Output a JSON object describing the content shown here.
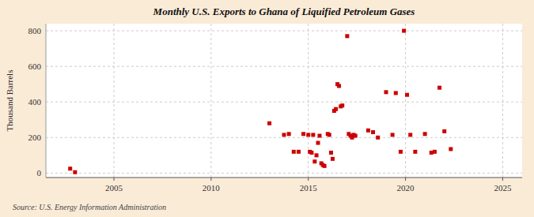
{
  "chart_data": {
    "type": "scatter",
    "title": "Monthly U.S. Exports to Ghana of Liquified Petroleum Gases",
    "ylabel": "Thousand Barrels",
    "annotations": [
      "Source: U.S. Energy Information Administration"
    ],
    "color": "#cc0000",
    "marker": "square",
    "grid": true,
    "xlim": [
      2001.5,
      2026
    ],
    "ylim": [
      -25,
      840
    ],
    "xticks": [
      2005,
      2010,
      2015,
      2020,
      2025
    ],
    "yticks": [
      0,
      200,
      400,
      600,
      800
    ],
    "x": [
      2002.75,
      2003.0,
      2013.0,
      2013.75,
      2014.0,
      2014.25,
      2014.5,
      2014.75,
      2015.0,
      2015.08,
      2015.17,
      2015.25,
      2015.33,
      2015.42,
      2015.5,
      2015.58,
      2015.67,
      2015.75,
      2015.83,
      2016.0,
      2016.08,
      2016.17,
      2016.25,
      2016.33,
      2016.42,
      2016.5,
      2016.58,
      2016.67,
      2016.75,
      2017.0,
      2017.08,
      2017.17,
      2017.25,
      2017.33,
      2017.42,
      2018.08,
      2018.33,
      2018.58,
      2019.0,
      2019.33,
      2019.5,
      2019.75,
      2019.92,
      2020.08,
      2020.25,
      2020.5,
      2021.0,
      2021.33,
      2021.5,
      2021.75,
      2022.0,
      2022.33
    ],
    "values": [
      25,
      5,
      280,
      215,
      220,
      120,
      120,
      220,
      215,
      120,
      115,
      215,
      65,
      100,
      170,
      210,
      55,
      45,
      40,
      220,
      215,
      115,
      80,
      350,
      360,
      500,
      490,
      375,
      380,
      770,
      220,
      210,
      200,
      215,
      210,
      240,
      230,
      200,
      455,
      215,
      450,
      120,
      800,
      440,
      215,
      120,
      220,
      115,
      120,
      480,
      235,
      135
    ]
  }
}
